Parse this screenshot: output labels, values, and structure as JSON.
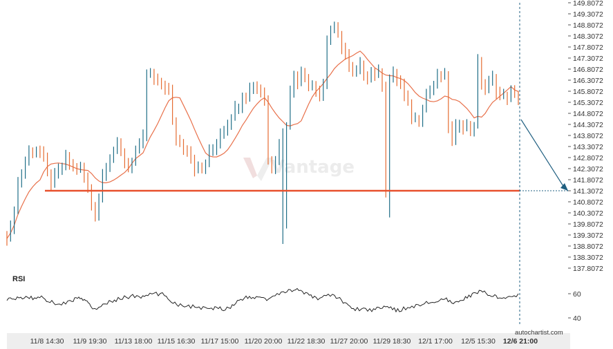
{
  "chart_data": {
    "type": "candlestick",
    "price_ticks": [
      "149.8072",
      "149.3072",
      "148.8072",
      "148.3072",
      "147.8072",
      "147.3072",
      "146.8072",
      "146.3072",
      "145.8072",
      "145.3072",
      "144.8072",
      "144.3072",
      "143.8072",
      "143.3072",
      "142.8072",
      "142.3072",
      "141.8072",
      "141.3072",
      "140.8072",
      "140.3072",
      "139.8072",
      "139.3072",
      "138.8072",
      "138.3072",
      "137.8072"
    ],
    "price_range": [
      137.3,
      150.0
    ],
    "time_labels": [
      "11/8 14:30",
      "11/9 19:30",
      "11/13 18:00",
      "11/15 16:30",
      "11/17 15:00",
      "11/20 20:00",
      "11/22 18:30",
      "11/27 20:00",
      "11/29 18:30",
      "12/1 17:00",
      "12/5 15:30",
      "12/6 21:00"
    ],
    "support_level": 141.3072,
    "forecast_target": 141.3072,
    "moving_average_color": "#e8704a",
    "support_color": "#e8502c",
    "bull_color": "#1f6e87",
    "bear_color": "#e56c32",
    "rsi": {
      "title": "RSI",
      "ticks": [
        "60",
        "40"
      ],
      "range": [
        30,
        75
      ]
    },
    "watermark": "Vantage",
    "brand": "autochartist.com"
  }
}
